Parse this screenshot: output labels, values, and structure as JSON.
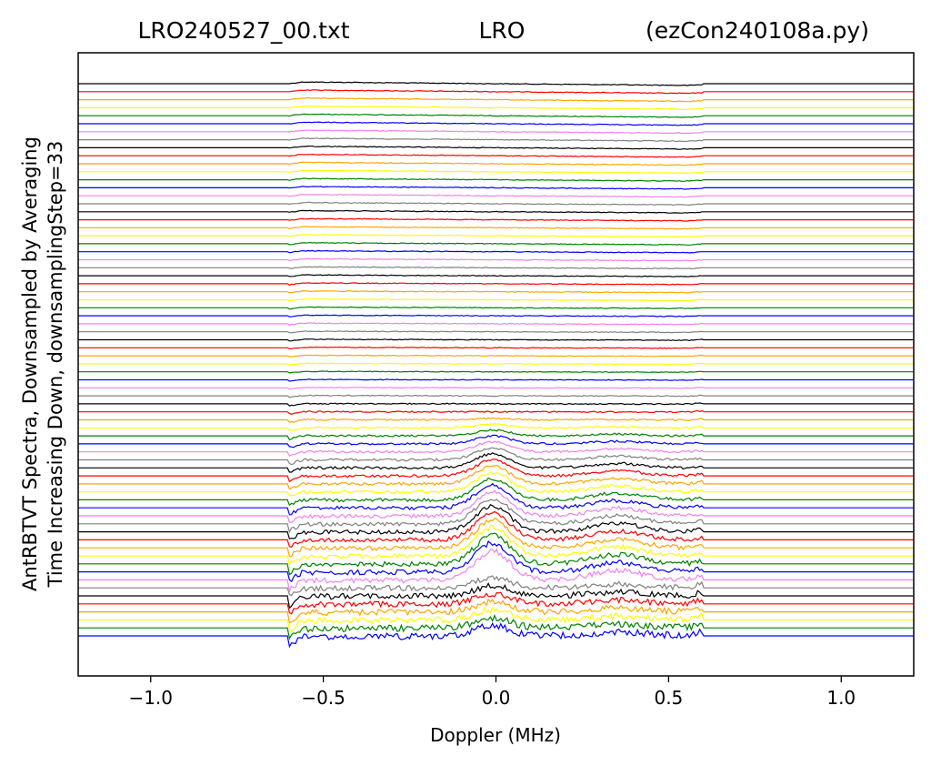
{
  "chart_data": {
    "type": "line",
    "title_left": "LRO240527_00.txt",
    "title_center": "LRO",
    "title_right": "(ezCon240108a.py)",
    "xlabel": "Doppler (MHz)",
    "ylabel_line1": "AntRBTVT Spectra, Downsampled by Averaging",
    "ylabel_line2": "Time Increasing Down, downsamplingStep=33",
    "xlim": [
      -1.21,
      1.21
    ],
    "x_ticks": [
      {
        "value": -1.0,
        "label": "−1.0"
      },
      {
        "value": -0.5,
        "label": "−0.5"
      },
      {
        "value": 0.0,
        "label": "0.0"
      },
      {
        "value": 0.5,
        "label": "0.5"
      },
      {
        "value": 1.0,
        "label": "1.0"
      }
    ],
    "y_ticks_shown": false,
    "grid": false,
    "legend": "none",
    "band_edges_mhz": [
      -0.6,
      0.6
    ],
    "color_cycle": [
      "#000000",
      "#ff0000",
      "#ffa500",
      "#ffff00",
      "#008000",
      "#0000ff",
      "#ee82ee",
      "#808080"
    ],
    "series_count": 70,
    "peak_components": [
      {
        "center_mhz": -0.01,
        "width_mhz": 0.07,
        "max_amplitude": 32
      },
      {
        "center_mhz": 0.35,
        "width_mhz": 0.1,
        "max_amplitude": 10
      }
    ]
  }
}
